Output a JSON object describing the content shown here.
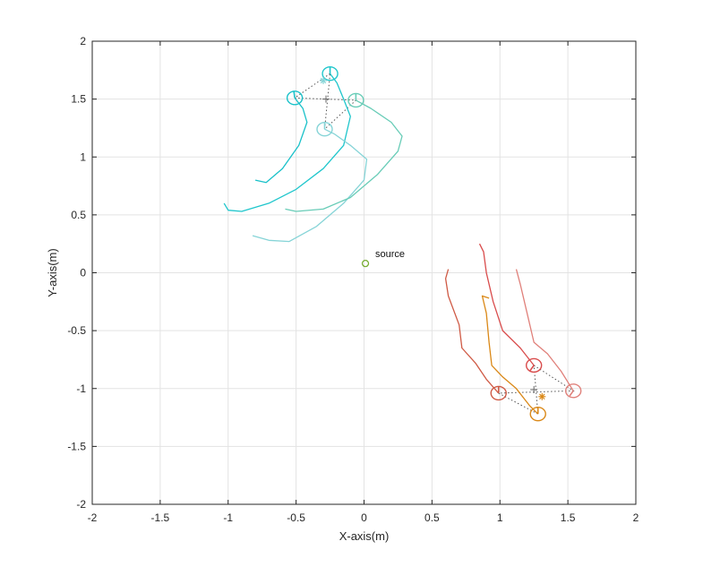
{
  "chart_data": {
    "type": "line",
    "title": "",
    "xlabel": "X-axis(m)",
    "ylabel": "Y-axis(m)",
    "xlim": [
      -2,
      2
    ],
    "ylim": [
      -2,
      2
    ],
    "xticks": [
      -2,
      -1.5,
      -1,
      -0.5,
      0,
      0.5,
      1,
      1.5,
      2
    ],
    "yticks": [
      -2,
      -1.5,
      -1,
      -0.5,
      0,
      0.5,
      1,
      1.5,
      2
    ],
    "xtick_labels": [
      "-2",
      "-1.5",
      "-1",
      "-0.5",
      "0",
      "0.5",
      "1",
      "1.5",
      "2"
    ],
    "ytick_labels": [
      "-2",
      "-1.5",
      "-1",
      "-0.5",
      "0",
      "0.5",
      "1",
      "1.5",
      "2"
    ],
    "grid": true,
    "legend": "none",
    "source": {
      "label": "source",
      "x": 0.01,
      "y": 0.08,
      "color": "#77ac30"
    },
    "groups": [
      {
        "center": {
          "x": -0.28,
          "y": 1.5
        },
        "star": {
          "x": -0.3,
          "y": 1.66
        },
        "formation_order": [
          0,
          1,
          3,
          2
        ],
        "robots": [
          {
            "color": "#1fc6cc",
            "end": {
              "x": -0.25,
              "y": 1.72
            },
            "heading": 1.57,
            "path": [
              [
                -0.25,
                1.72
              ],
              [
                -0.2,
                1.64
              ],
              [
                -0.15,
                1.5
              ],
              [
                -0.1,
                1.35
              ],
              [
                -0.15,
                1.1
              ],
              [
                -0.3,
                0.9
              ],
              [
                -0.5,
                0.72
              ],
              [
                -0.7,
                0.6
              ],
              [
                -0.9,
                0.53
              ],
              [
                -1.0,
                0.54
              ],
              [
                -1.03,
                0.6
              ]
            ]
          },
          {
            "color": "#19c1c9",
            "end": {
              "x": -0.51,
              "y": 1.51
            },
            "heading": 1.7,
            "path": [
              [
                -0.51,
                1.51
              ],
              [
                -0.45,
                1.42
              ],
              [
                -0.42,
                1.3
              ],
              [
                -0.48,
                1.1
              ],
              [
                -0.6,
                0.9
              ],
              [
                -0.72,
                0.78
              ],
              [
                -0.8,
                0.8
              ]
            ]
          },
          {
            "color": "#86d4d7",
            "end": {
              "x": -0.29,
              "y": 1.24
            },
            "heading": 1.57,
            "path": [
              [
                -0.29,
                1.24
              ],
              [
                -0.22,
                1.2
              ],
              [
                -0.1,
                1.1
              ],
              [
                0.02,
                0.98
              ],
              [
                0.0,
                0.8
              ],
              [
                -0.15,
                0.6
              ],
              [
                -0.35,
                0.4
              ],
              [
                -0.55,
                0.27
              ],
              [
                -0.7,
                0.28
              ],
              [
                -0.82,
                0.32
              ]
            ]
          },
          {
            "color": "#68ccb7",
            "end": {
              "x": -0.06,
              "y": 1.49
            },
            "heading": 1.57,
            "path": [
              [
                -0.06,
                1.49
              ],
              [
                0.05,
                1.42
              ],
              [
                0.2,
                1.3
              ],
              [
                0.28,
                1.18
              ],
              [
                0.25,
                1.05
              ],
              [
                0.1,
                0.85
              ],
              [
                -0.1,
                0.65
              ],
              [
                -0.3,
                0.55
              ],
              [
                -0.5,
                0.53
              ],
              [
                -0.58,
                0.55
              ]
            ]
          }
        ]
      },
      {
        "center": {
          "x": 1.25,
          "y": -1.01
        },
        "star": {
          "x": 1.31,
          "y": -1.07
        },
        "formation_order": [
          0,
          1,
          3,
          2
        ],
        "robots": [
          {
            "color": "#d94c4c",
            "end": {
              "x": 1.25,
              "y": -0.8
            },
            "heading": -2.2,
            "path": [
              [
                1.25,
                -0.8
              ],
              [
                1.15,
                -0.65
              ],
              [
                1.02,
                -0.5
              ],
              [
                0.95,
                -0.25
              ],
              [
                0.9,
                0.0
              ],
              [
                0.88,
                0.18
              ],
              [
                0.85,
                0.25
              ]
            ]
          },
          {
            "color": "#e0807a",
            "end": {
              "x": 1.54,
              "y": -1.02
            },
            "heading": -2.2,
            "path": [
              [
                1.54,
                -1.02
              ],
              [
                1.45,
                -0.85
              ],
              [
                1.35,
                -0.7
              ],
              [
                1.25,
                -0.6
              ],
              [
                1.2,
                -0.35
              ],
              [
                1.15,
                -0.1
              ],
              [
                1.12,
                0.03
              ]
            ]
          },
          {
            "color": "#da8817",
            "end": {
              "x": 1.28,
              "y": -1.22
            },
            "heading": 1.57,
            "path": [
              [
                1.28,
                -1.22
              ],
              [
                1.22,
                -1.15
              ],
              [
                1.12,
                -1.0
              ],
              [
                1.02,
                -0.9
              ],
              [
                0.94,
                -0.8
              ],
              [
                0.92,
                -0.6
              ],
              [
                0.9,
                -0.35
              ],
              [
                0.87,
                -0.2
              ],
              [
                0.92,
                -0.22
              ]
            ]
          },
          {
            "color": "#cf5a45",
            "end": {
              "x": 0.99,
              "y": -1.04
            },
            "heading": 1.57,
            "path": [
              [
                0.99,
                -1.04
              ],
              [
                0.9,
                -0.92
              ],
              [
                0.82,
                -0.78
              ],
              [
                0.72,
                -0.65
              ],
              [
                0.7,
                -0.45
              ],
              [
                0.62,
                -0.2
              ],
              [
                0.6,
                -0.05
              ],
              [
                0.62,
                0.03
              ]
            ]
          }
        ]
      }
    ]
  }
}
